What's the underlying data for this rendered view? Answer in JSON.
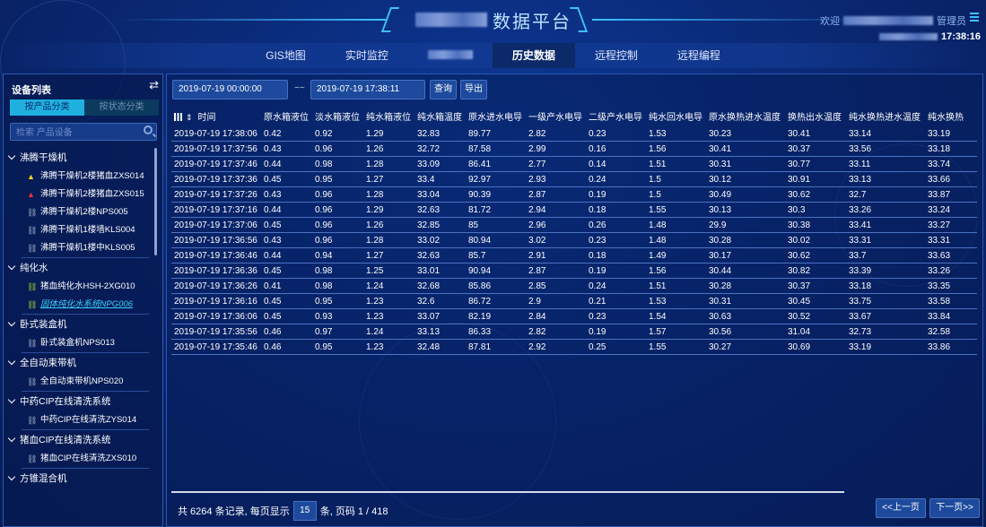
{
  "header": {
    "title": "数据平台",
    "welcome_prefix": "欢迎",
    "welcome_suffix": "管理员",
    "clock": "17:38:16",
    "menu_icon": "menu-icon"
  },
  "nav": {
    "items": [
      {
        "label": "GIS地图"
      },
      {
        "label": "实时监控"
      },
      {
        "label": ""
      },
      {
        "label": "历史数据",
        "active": true
      },
      {
        "label": "远程控制"
      },
      {
        "label": "远程编程"
      }
    ]
  },
  "sidebar": {
    "title": "设备列表",
    "tab_product": "按产品分类",
    "tab_status": "按状态分类",
    "search_placeholder": "检索 产品设备",
    "groups": [
      {
        "label": "沸腾干燥机",
        "items": [
          {
            "label": "沸腾干燥机2楼猪血ZXS014",
            "icon": "warning-yellow"
          },
          {
            "label": "沸腾干燥机2楼猪血ZXS015",
            "icon": "warning-red"
          },
          {
            "label": "沸腾干燥机2楼NPS005",
            "icon": "link-broken"
          },
          {
            "label": "沸腾干燥机1楼墙KLS004",
            "icon": "link-broken"
          },
          {
            "label": "沸腾干燥机1楼中KLS005",
            "icon": "link-broken"
          }
        ]
      },
      {
        "label": "纯化水",
        "items": [
          {
            "label": "猪血纯化水HSH-2XG010",
            "icon": "link-online"
          },
          {
            "label": "固体纯化水系统NPG006",
            "icon": "link-online",
            "selected": true
          }
        ]
      },
      {
        "label": "卧式装盒机",
        "items": [
          {
            "label": "卧式装盒机NPS013",
            "icon": "link-broken"
          }
        ]
      },
      {
        "label": "全自动束带机",
        "items": [
          {
            "label": "全自动束带机NPS020",
            "icon": "link-broken"
          }
        ]
      },
      {
        "label": "中药CIP在线清洗系统",
        "items": [
          {
            "label": "中药CIP在线清洗ZYS014",
            "icon": "link-broken"
          }
        ]
      },
      {
        "label": "猪血CIP在线清洗系统",
        "items": [
          {
            "label": "猪血CIP在线清洗ZXS010",
            "icon": "link-broken"
          }
        ]
      },
      {
        "label": "方锥混合机",
        "items": []
      }
    ]
  },
  "filter": {
    "start": "2019-07-19 00:00:00",
    "separator": "~~",
    "end": "2019-07-19 17:38:11",
    "query": "查询",
    "export": "导出"
  },
  "table": {
    "columns": [
      "时间",
      "原水箱液位",
      "淡水箱液位",
      "纯水箱液位",
      "纯水箱温度",
      "原水进水电导",
      "一级产水电导",
      "二级产水电导",
      "纯水回水电导",
      "原水换热进水温度",
      "换热出水温度",
      "纯水换热进水温度",
      "纯水换热"
    ],
    "rows": [
      [
        "2019-07-19 17:38:06",
        "0.42",
        "0.92",
        "1.29",
        "32.83",
        "89.77",
        "2.82",
        "0.23",
        "1.53",
        "30.23",
        "30.41",
        "33.14",
        "33.19"
      ],
      [
        "2019-07-19 17:37:56",
        "0.43",
        "0.96",
        "1.26",
        "32.72",
        "87.58",
        "2.99",
        "0.16",
        "1.56",
        "30.41",
        "30.37",
        "33.56",
        "33.18"
      ],
      [
        "2019-07-19 17:37:46",
        "0.44",
        "0.98",
        "1.28",
        "33.09",
        "86.41",
        "2.77",
        "0.14",
        "1.51",
        "30.31",
        "30.77",
        "33.11",
        "33.74"
      ],
      [
        "2019-07-19 17:37:36",
        "0.45",
        "0.95",
        "1.27",
        "33.4",
        "92.97",
        "2.93",
        "0.24",
        "1.5",
        "30.12",
        "30.91",
        "33.13",
        "33.66"
      ],
      [
        "2019-07-19 17:37:26",
        "0.43",
        "0.96",
        "1.28",
        "33.04",
        "90.39",
        "2.87",
        "0.19",
        "1.5",
        "30.49",
        "30.62",
        "32.7",
        "33.87"
      ],
      [
        "2019-07-19 17:37:16",
        "0.44",
        "0.96",
        "1.29",
        "32.63",
        "81.72",
        "2.94",
        "0.18",
        "1.55",
        "30.13",
        "30.3",
        "33.26",
        "33.24"
      ],
      [
        "2019-07-19 17:37:06",
        "0.45",
        "0.96",
        "1.26",
        "32.85",
        "85",
        "2.96",
        "0.26",
        "1.48",
        "29.9",
        "30.38",
        "33.41",
        "33.27"
      ],
      [
        "2019-07-19 17:36:56",
        "0.43",
        "0.96",
        "1.28",
        "33.02",
        "80.94",
        "3.02",
        "0.23",
        "1.48",
        "30.28",
        "30.02",
        "33.31",
        "33.31"
      ],
      [
        "2019-07-19 17:36:46",
        "0.44",
        "0.94",
        "1.27",
        "32.63",
        "85.7",
        "2.91",
        "0.18",
        "1.49",
        "30.17",
        "30.62",
        "33.7",
        "33.63"
      ],
      [
        "2019-07-19 17:36:36",
        "0.45",
        "0.98",
        "1.25",
        "33.01",
        "90.94",
        "2.87",
        "0.19",
        "1.56",
        "30.44",
        "30.82",
        "33.39",
        "33.26"
      ],
      [
        "2019-07-19 17:36:26",
        "0.41",
        "0.98",
        "1.24",
        "32.68",
        "85.86",
        "2.85",
        "0.24",
        "1.51",
        "30.28",
        "30.37",
        "33.18",
        "33.35"
      ],
      [
        "2019-07-19 17:36:16",
        "0.45",
        "0.95",
        "1.23",
        "32.6",
        "86.72",
        "2.9",
        "0.21",
        "1.53",
        "30.31",
        "30.45",
        "33.75",
        "33.58"
      ],
      [
        "2019-07-19 17:36:06",
        "0.45",
        "0.93",
        "1.23",
        "33.07",
        "82.19",
        "2.84",
        "0.23",
        "1.54",
        "30.63",
        "30.52",
        "33.67",
        "33.84"
      ],
      [
        "2019-07-19 17:35:56",
        "0.46",
        "0.97",
        "1.24",
        "33.13",
        "86.33",
        "2.82",
        "0.19",
        "1.57",
        "30.56",
        "31.04",
        "32.73",
        "32.58"
      ],
      [
        "2019-07-19 17:35:46",
        "0.46",
        "0.95",
        "1.23",
        "32.48",
        "87.81",
        "2.92",
        "0.25",
        "1.55",
        "30.27",
        "30.69",
        "33.19",
        "33.86"
      ]
    ]
  },
  "footer": {
    "total_prefix": "共 6264 条记录, 每页显示",
    "page_size": "15",
    "total_suffix": "条, 页码 1 / 418",
    "prev": "<<上一页",
    "next": "下一页>>"
  },
  "colors": {
    "accent": "#1fb0e0",
    "background": "#0a2a78",
    "warning_yellow": "#f2d21b",
    "warning_red": "#e8333a",
    "online_green": "#9bd12c"
  }
}
